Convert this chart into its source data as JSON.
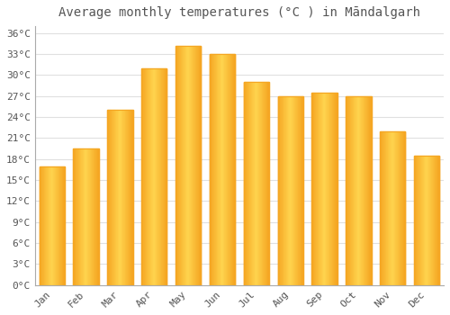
{
  "title": "Average monthly temperatures (°C ) in Māndalgarh",
  "months": [
    "Jan",
    "Feb",
    "Mar",
    "Apr",
    "May",
    "Jun",
    "Jul",
    "Aug",
    "Sep",
    "Oct",
    "Nov",
    "Dec"
  ],
  "temperatures": [
    17.0,
    19.5,
    25.0,
    31.0,
    34.2,
    33.0,
    29.0,
    27.0,
    27.5,
    27.0,
    22.0,
    18.5
  ],
  "bar_color_center": "#FFD54F",
  "bar_color_edge": "#F5A623",
  "ylim": [
    0,
    37
  ],
  "yticks": [
    0,
    3,
    6,
    9,
    12,
    15,
    18,
    21,
    24,
    27,
    30,
    33,
    36
  ],
  "ytick_labels": [
    "0°C",
    "3°C",
    "6°C",
    "9°C",
    "12°C",
    "15°C",
    "18°C",
    "21°C",
    "24°C",
    "27°C",
    "30°C",
    "33°C",
    "36°C"
  ],
  "background_color": "#ffffff",
  "grid_color": "#e0e0e0",
  "title_fontsize": 10,
  "tick_fontsize": 8,
  "font_color": "#555555",
  "bar_width": 0.75
}
